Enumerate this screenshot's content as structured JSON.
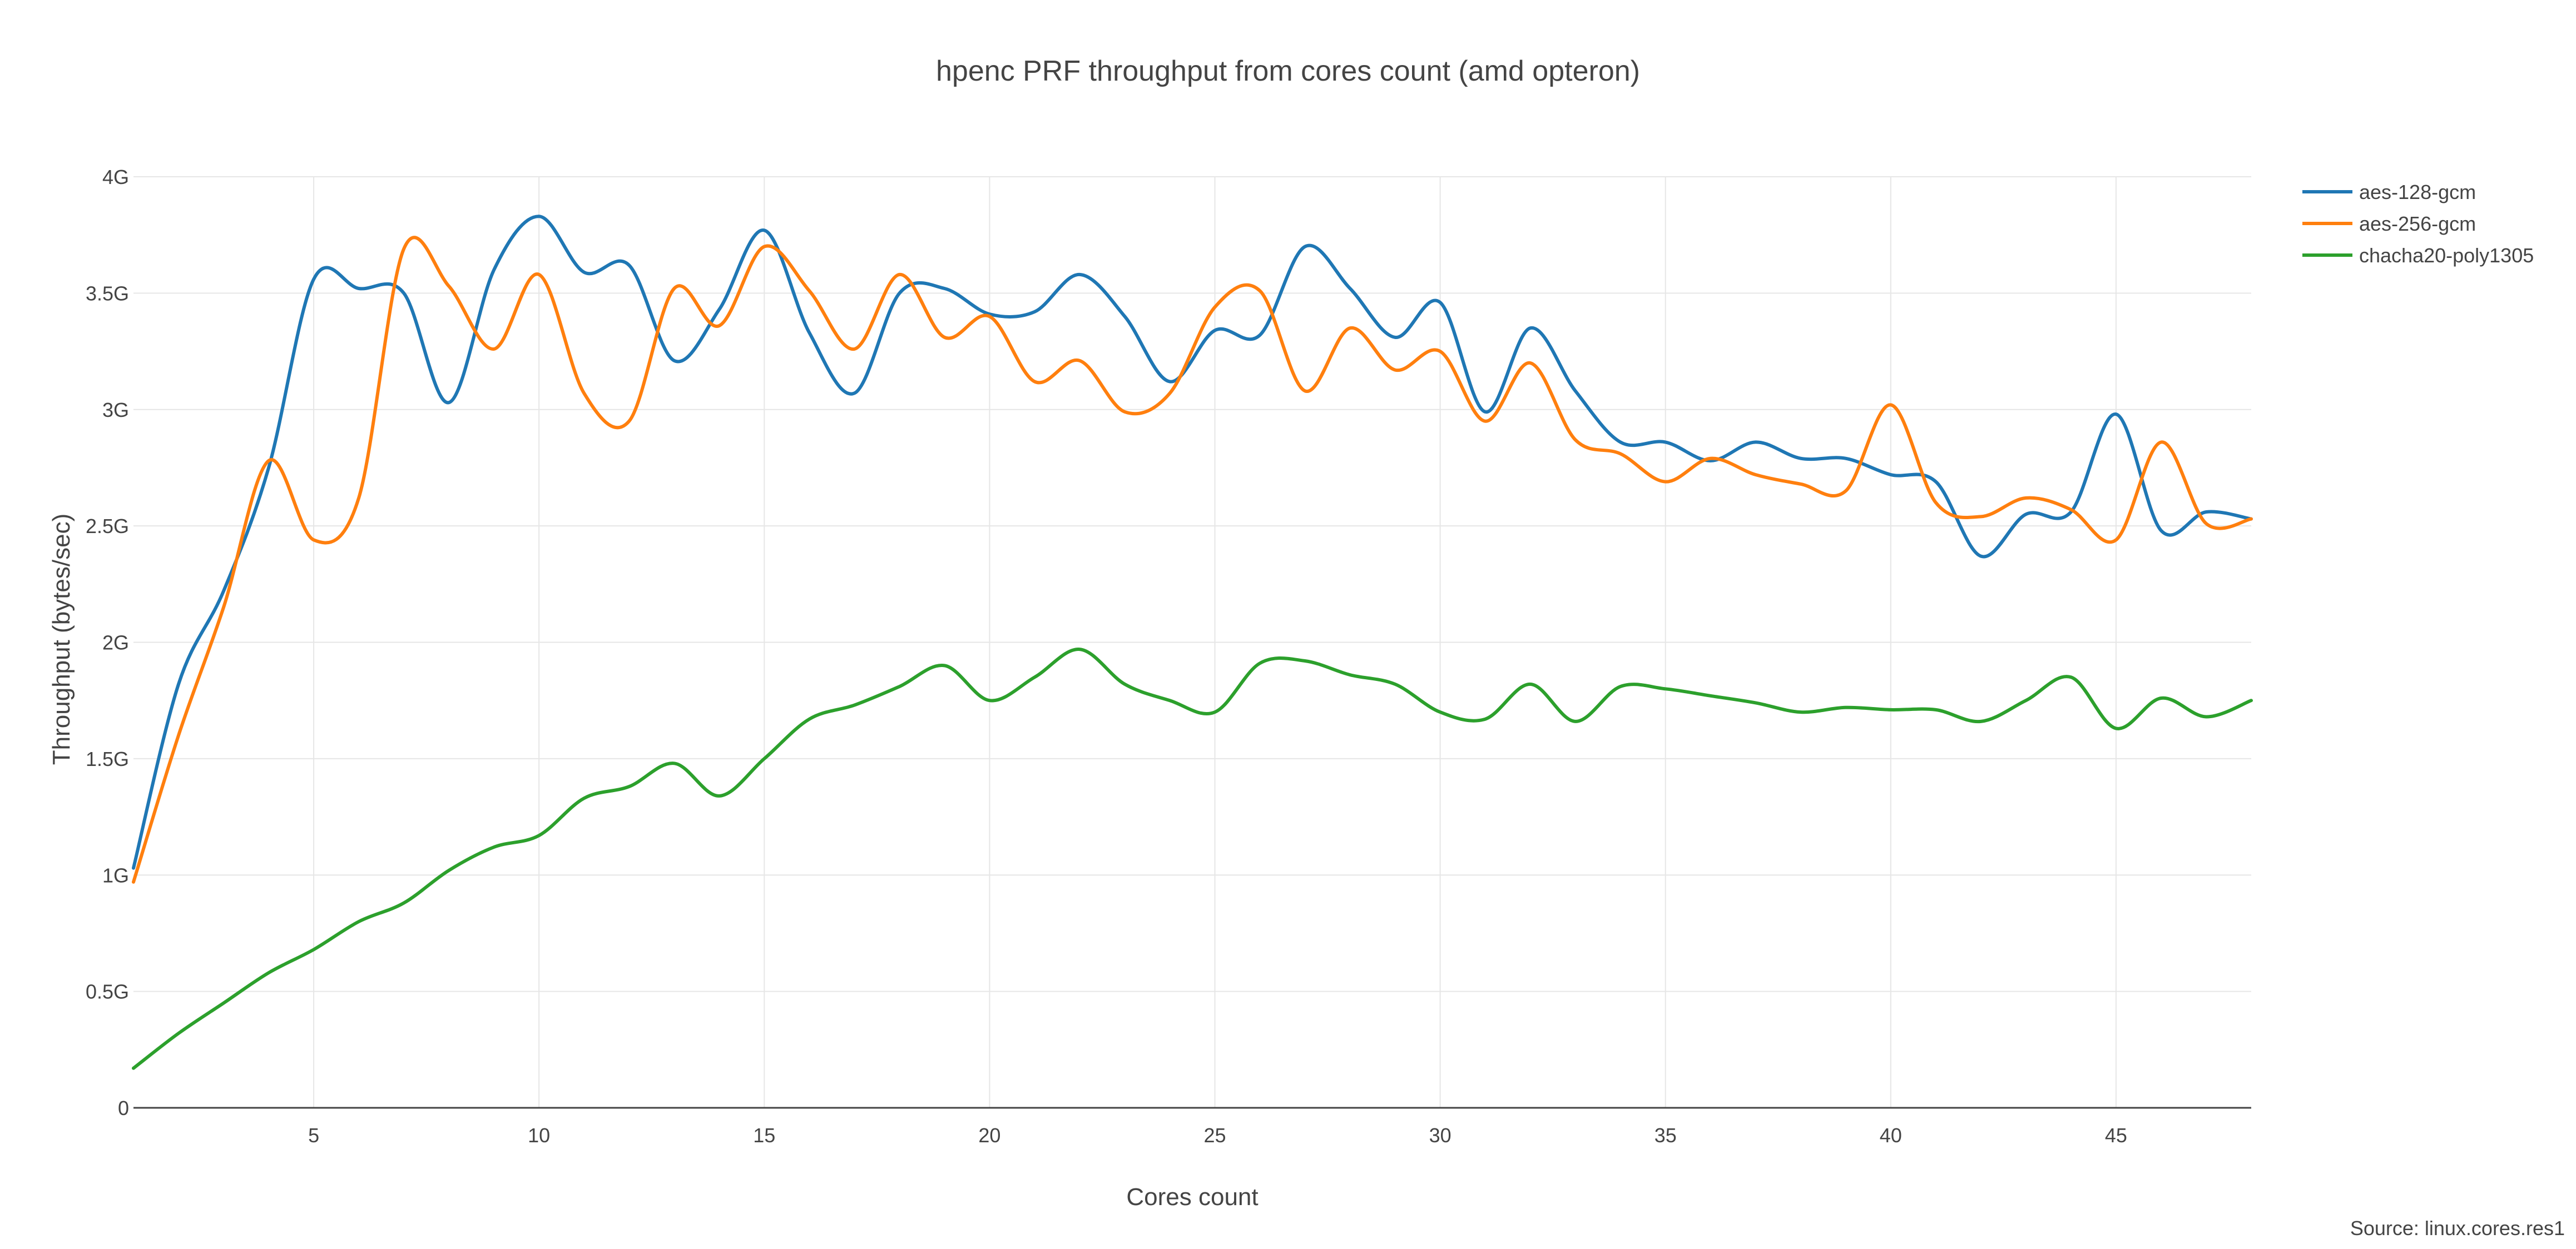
{
  "chart_data": {
    "type": "line",
    "title": "hpenc PRF throughput from cores count (amd opteron)",
    "xlabel": "Cores count",
    "ylabel": "Throughput (bytes/sec)",
    "source": "Source: linux.cores.res1",
    "xlim": [
      1,
      48
    ],
    "ylim": [
      0,
      4
    ],
    "x_ticks": [
      5,
      10,
      15,
      20,
      25,
      30,
      35,
      40,
      45
    ],
    "y_ticks": [
      {
        "value": 0,
        "label": "0"
      },
      {
        "value": 0.5,
        "label": "0.5G"
      },
      {
        "value": 1,
        "label": "1G"
      },
      {
        "value": 1.5,
        "label": "1.5G"
      },
      {
        "value": 2,
        "label": "2G"
      },
      {
        "value": 2.5,
        "label": "2.5G"
      },
      {
        "value": 3,
        "label": "3G"
      },
      {
        "value": 3.5,
        "label": "3.5G"
      },
      {
        "value": 4,
        "label": "4G"
      }
    ],
    "y_unit": "G bytes/sec",
    "grid": true,
    "legend_position": "top-right",
    "x": [
      1,
      2,
      3,
      4,
      5,
      6,
      7,
      8,
      9,
      10,
      11,
      12,
      13,
      14,
      15,
      16,
      17,
      18,
      19,
      20,
      21,
      22,
      23,
      24,
      25,
      26,
      27,
      28,
      29,
      30,
      31,
      32,
      33,
      34,
      35,
      36,
      37,
      38,
      39,
      40,
      41,
      42,
      43,
      44,
      45,
      46,
      47,
      48
    ],
    "series": [
      {
        "name": "aes-128-gcm",
        "color": "#1f77b4",
        "values": [
          1.03,
          1.82,
          2.22,
          2.75,
          3.56,
          3.52,
          3.5,
          3.03,
          3.6,
          3.83,
          3.59,
          3.62,
          3.21,
          3.43,
          3.77,
          3.33,
          3.07,
          3.5,
          3.52,
          3.41,
          3.42,
          3.58,
          3.4,
          3.12,
          3.34,
          3.32,
          3.7,
          3.52,
          3.31,
          3.46,
          2.99,
          3.35,
          3.08,
          2.86,
          2.86,
          2.78,
          2.86,
          2.79,
          2.79,
          2.72,
          2.69,
          2.37,
          2.55,
          2.56,
          2.98,
          2.48,
          2.56,
          2.53
        ]
      },
      {
        "name": "aes-256-gcm",
        "color": "#ff7f0e",
        "values": [
          0.97,
          1.6,
          2.15,
          2.78,
          2.44,
          2.62,
          3.69,
          3.53,
          3.26,
          3.58,
          3.07,
          2.95,
          3.52,
          3.36,
          3.7,
          3.51,
          3.26,
          3.58,
          3.31,
          3.4,
          3.12,
          3.21,
          2.99,
          3.07,
          3.44,
          3.51,
          3.08,
          3.35,
          3.17,
          3.25,
          2.95,
          3.2,
          2.87,
          2.81,
          2.69,
          2.79,
          2.72,
          2.68,
          2.65,
          3.02,
          2.6,
          2.54,
          2.62,
          2.57,
          2.44,
          2.86,
          2.51,
          2.53
        ]
      },
      {
        "name": "chacha20-poly1305",
        "color": "#2ca02c",
        "values": [
          0.17,
          0.32,
          0.45,
          0.58,
          0.68,
          0.8,
          0.88,
          1.02,
          1.12,
          1.17,
          1.33,
          1.38,
          1.48,
          1.34,
          1.5,
          1.67,
          1.73,
          1.81,
          1.9,
          1.75,
          1.85,
          1.97,
          1.82,
          1.75,
          1.7,
          1.91,
          1.92,
          1.86,
          1.82,
          1.7,
          1.67,
          1.82,
          1.66,
          1.81,
          1.8,
          1.77,
          1.74,
          1.7,
          1.72,
          1.71,
          1.71,
          1.66,
          1.75,
          1.85,
          1.63,
          1.76,
          1.68,
          1.75
        ]
      }
    ]
  }
}
